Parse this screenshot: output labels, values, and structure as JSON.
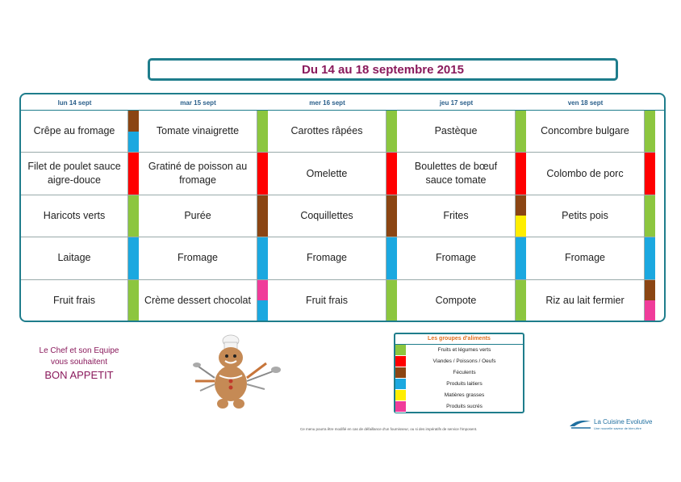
{
  "title": "Du 14 au 18 septembre 2015",
  "days": [
    {
      "label": "lun 14 sept",
      "dishes": [
        {
          "name": "Crêpe au fromage",
          "groups": [
            "feculents",
            "produits_laitiers"
          ]
        },
        {
          "name": "Filet de poulet sauce aigre-douce",
          "groups": [
            "viandes"
          ]
        },
        {
          "name": "Haricots verts",
          "groups": [
            "fruits_legumes"
          ]
        },
        {
          "name": "Laitage",
          "groups": [
            "produits_laitiers"
          ]
        },
        {
          "name": "Fruit frais",
          "groups": [
            "fruits_legumes"
          ]
        }
      ]
    },
    {
      "label": "mar 15 sept",
      "dishes": [
        {
          "name": "Tomate vinaigrette",
          "groups": [
            "fruits_legumes"
          ]
        },
        {
          "name": "Gratiné de poisson au fromage",
          "groups": [
            "viandes"
          ]
        },
        {
          "name": "Purée",
          "groups": [
            "feculents"
          ]
        },
        {
          "name": "Fromage",
          "groups": [
            "produits_laitiers"
          ]
        },
        {
          "name": "Crème dessert chocolat",
          "groups": [
            "produits_sucres",
            "produits_laitiers"
          ]
        }
      ]
    },
    {
      "label": "mer 16 sept",
      "dishes": [
        {
          "name": "Carottes râpées",
          "groups": [
            "fruits_legumes"
          ]
        },
        {
          "name": "Omelette",
          "groups": [
            "viandes"
          ]
        },
        {
          "name": "Coquillettes",
          "groups": [
            "feculents"
          ]
        },
        {
          "name": "Fromage",
          "groups": [
            "produits_laitiers"
          ]
        },
        {
          "name": "Fruit frais",
          "groups": [
            "fruits_legumes"
          ]
        }
      ]
    },
    {
      "label": "jeu 17 sept",
      "dishes": [
        {
          "name": "Pastèque",
          "groups": [
            "fruits_legumes"
          ]
        },
        {
          "name": "Boulettes de bœuf sauce tomate",
          "groups": [
            "viandes"
          ]
        },
        {
          "name": "Frites",
          "groups": [
            "feculents",
            "matieres_grasses"
          ]
        },
        {
          "name": "Fromage",
          "groups": [
            "produits_laitiers"
          ]
        },
        {
          "name": "Compote",
          "groups": [
            "fruits_legumes"
          ]
        }
      ]
    },
    {
      "label": "ven 18 sept",
      "dishes": [
        {
          "name": "Concombre bulgare",
          "groups": [
            "fruits_legumes"
          ]
        },
        {
          "name": "Colombo de porc",
          "groups": [
            "viandes"
          ]
        },
        {
          "name": "Petits pois",
          "groups": [
            "fruits_legumes"
          ]
        },
        {
          "name": "Fromage",
          "groups": [
            "produits_laitiers"
          ]
        },
        {
          "name": "Riz au lait fermier",
          "groups": [
            "feculents",
            "produits_sucres"
          ]
        }
      ]
    }
  ],
  "legend": {
    "title": "Les groupes d'aliments",
    "items": [
      {
        "key": "fruits_legumes",
        "label": "Fruits et légumes verts",
        "color": "#8cc63f"
      },
      {
        "key": "viandes",
        "label": "Viandes / Poissons / Oeufs",
        "color": "#ff0000"
      },
      {
        "key": "feculents",
        "label": "Féculents",
        "color": "#8b4513"
      },
      {
        "key": "produits_laitiers",
        "label": "Produits laitiers",
        "color": "#1ba8e0"
      },
      {
        "key": "matieres_grasses",
        "label": "Matières grasses",
        "color": "#ffee00"
      },
      {
        "key": "produits_sucres",
        "label": "Produits sucrés",
        "color": "#f03c9a"
      }
    ]
  },
  "greeting": {
    "line1": "Le Chef et son Equipe",
    "line2": "vous souhaitent",
    "line3": "BON APPETIT"
  },
  "footnote": "Ce menu pourra être modifié en cas de défaillance d'un fournisseur, ou si des impératifs de service l'imposent.",
  "logo": {
    "name": "La Cuisine Evolutive",
    "tagline": "Une nouvelle saveur de bien-être"
  },
  "colors": {
    "accent": "#1f7d8c",
    "title": "#8a1a5c"
  }
}
